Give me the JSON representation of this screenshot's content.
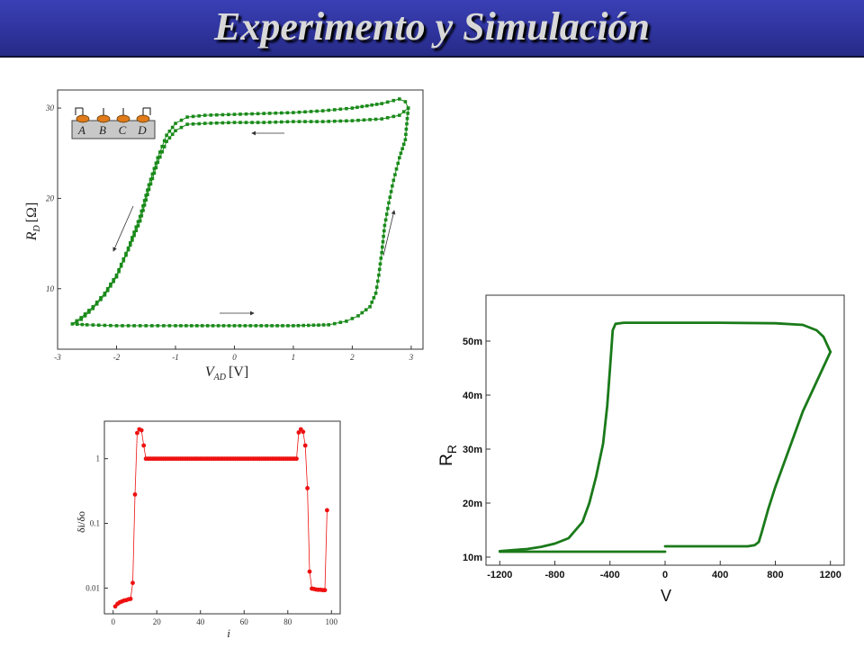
{
  "slide": {
    "title": "Experimento y Simulación",
    "accent_color": "#2f349e",
    "title_color": "#d8d8d8"
  },
  "chart_data": [
    {
      "id": "experiment",
      "type": "scatter",
      "title": "",
      "xlabel": "V",
      "xlabel_sub": "AD",
      "xlabel_unit": "[V]",
      "ylabel": "R",
      "ylabel_sub": "D",
      "ylabel_unit": "[Ω]",
      "xlim": [
        -3,
        3.2
      ],
      "ylim": [
        3.3,
        32
      ],
      "xticks": [
        -3,
        -2,
        -1,
        0,
        1,
        2,
        3
      ],
      "yticks": [
        10,
        20,
        30
      ],
      "grid": false,
      "color": "#1a8a1a",
      "inset_labels": [
        "A",
        "B",
        "C",
        "D"
      ],
      "arrows": [
        "upper branch leftward",
        "lower branch rightward",
        "left branch downward",
        "right branch upward"
      ],
      "series": [
        {
          "x": [
            -2.75,
            -2.5,
            -2.0,
            -1.5,
            -1.0,
            0.0,
            1.0,
            1.6,
            1.9,
            2.1,
            2.3,
            2.4,
            2.45,
            2.5,
            2.55,
            2.62,
            2.7,
            2.8,
            2.9,
            2.95,
            2.9,
            2.8,
            2.5,
            2.0,
            1.5,
            1.0,
            0.5,
            0.0,
            -0.5,
            -0.8,
            -1.0,
            -1.15,
            -1.3,
            -1.45,
            -1.6,
            -1.8,
            -2.0,
            -2.2,
            -2.4,
            -2.6,
            -2.75
          ],
          "y": [
            6.1,
            6.0,
            5.9,
            5.9,
            5.9,
            5.9,
            5.9,
            6.0,
            6.4,
            7.0,
            8.0,
            9.5,
            11.5,
            14.0,
            17.0,
            19.5,
            22.0,
            24.5,
            26.5,
            30.0,
            30.7,
            31.0,
            30.5,
            30.0,
            29.7,
            29.5,
            29.4,
            29.3,
            29.2,
            29.0,
            28.3,
            27.0,
            24.5,
            21.5,
            18.0,
            14.5,
            11.5,
            9.5,
            8.0,
            6.8,
            6.1
          ]
        },
        {
          "x": [
            2.95,
            2.8,
            2.5,
            2.0,
            1.5,
            1.0,
            0.5,
            0.0,
            -0.5,
            -0.8,
            -1.0,
            -1.15,
            -1.3,
            -1.45,
            -1.6,
            -1.8,
            -2.0,
            -2.2,
            -2.4,
            -2.6,
            -2.75
          ],
          "y": [
            30.0,
            29.2,
            28.8,
            28.6,
            28.5,
            28.5,
            28.4,
            28.4,
            28.3,
            28.2,
            27.5,
            26.3,
            24.0,
            21.0,
            17.5,
            14.3,
            11.3,
            9.3,
            7.8,
            6.6,
            6.1
          ]
        }
      ]
    },
    {
      "id": "delta-ratio",
      "type": "line",
      "title": "",
      "xlabel": "i",
      "ylabel": "δi/δo",
      "xlim": [
        -4,
        104
      ],
      "ylim": [
        0.004,
        3.8
      ],
      "yscale": "log",
      "xticks": [
        0,
        20,
        40,
        60,
        80,
        100
      ],
      "yticks": [
        0.01,
        0.1,
        1
      ],
      "ytick_labels": [
        "0.01",
        "0.1",
        "1"
      ],
      "color": "#ee1111",
      "x": [
        1,
        2,
        3,
        4,
        5,
        6,
        7,
        8,
        9,
        10,
        11,
        12,
        13,
        14,
        15,
        16,
        20,
        25,
        30,
        35,
        40,
        45,
        50,
        55,
        60,
        65,
        70,
        75,
        80,
        84,
        85,
        86,
        87,
        88,
        89,
        90,
        91,
        92,
        93,
        94,
        95,
        96,
        97,
        98
      ],
      "y": [
        0.0052,
        0.0057,
        0.006,
        0.0062,
        0.0064,
        0.0065,
        0.0067,
        0.0068,
        0.012,
        0.28,
        2.5,
        2.85,
        2.75,
        1.6,
        1.0,
        1.0,
        1.0,
        1.0,
        1.0,
        1.0,
        1.0,
        1.0,
        1.0,
        1.0,
        1.0,
        1.0,
        1.0,
        1.0,
        1.0,
        1.0,
        2.55,
        2.85,
        2.6,
        1.6,
        0.35,
        0.018,
        0.0098,
        0.0097,
        0.0095,
        0.0094,
        0.0094,
        0.0093,
        0.0093,
        0.16
      ]
    },
    {
      "id": "simulation",
      "type": "line",
      "title": "",
      "xlabel": "V",
      "ylabel": "R",
      "ylabel_sub": "R",
      "xlim": [
        -1300,
        1300
      ],
      "ylim": [
        0.0085,
        0.0585
      ],
      "xticks": [
        -1200,
        -800,
        -400,
        0,
        400,
        800,
        1200
      ],
      "xtick_labels": [
        "-1200",
        "-800",
        "-400",
        "0",
        "400",
        "800",
        "1200"
      ],
      "yticks": [
        0.01,
        0.02,
        0.03,
        0.04,
        0.05
      ],
      "ytick_labels": [
        "10m",
        "20m",
        "30m",
        "40m",
        "50m"
      ],
      "color": "#1a7a1a",
      "series": [
        {
          "x": [
            0,
            200,
            400,
            600,
            650,
            680,
            700,
            750,
            800,
            900,
            1000,
            1100,
            1200
          ],
          "y": [
            0.012,
            0.012,
            0.012,
            0.012,
            0.0122,
            0.0128,
            0.0145,
            0.019,
            0.023,
            0.03,
            0.037,
            0.0425,
            0.048
          ]
        },
        {
          "x": [
            1200,
            1150,
            1100,
            1000,
            800,
            400,
            0,
            -300,
            -360,
            -380,
            -400,
            -420,
            -450,
            -500,
            -550,
            -600,
            -700,
            -800,
            -900,
            -1000,
            -1100,
            -1200
          ],
          "y": [
            0.048,
            0.0508,
            0.052,
            0.053,
            0.0533,
            0.0534,
            0.0534,
            0.0534,
            0.0532,
            0.052,
            0.045,
            0.038,
            0.031,
            0.025,
            0.02,
            0.0165,
            0.0135,
            0.0125,
            0.0119,
            0.0115,
            0.0113,
            0.0111
          ]
        },
        {
          "x": [
            -1200,
            -800,
            -400,
            0
          ],
          "y": [
            0.011,
            0.011,
            0.011,
            0.011
          ]
        }
      ]
    }
  ]
}
